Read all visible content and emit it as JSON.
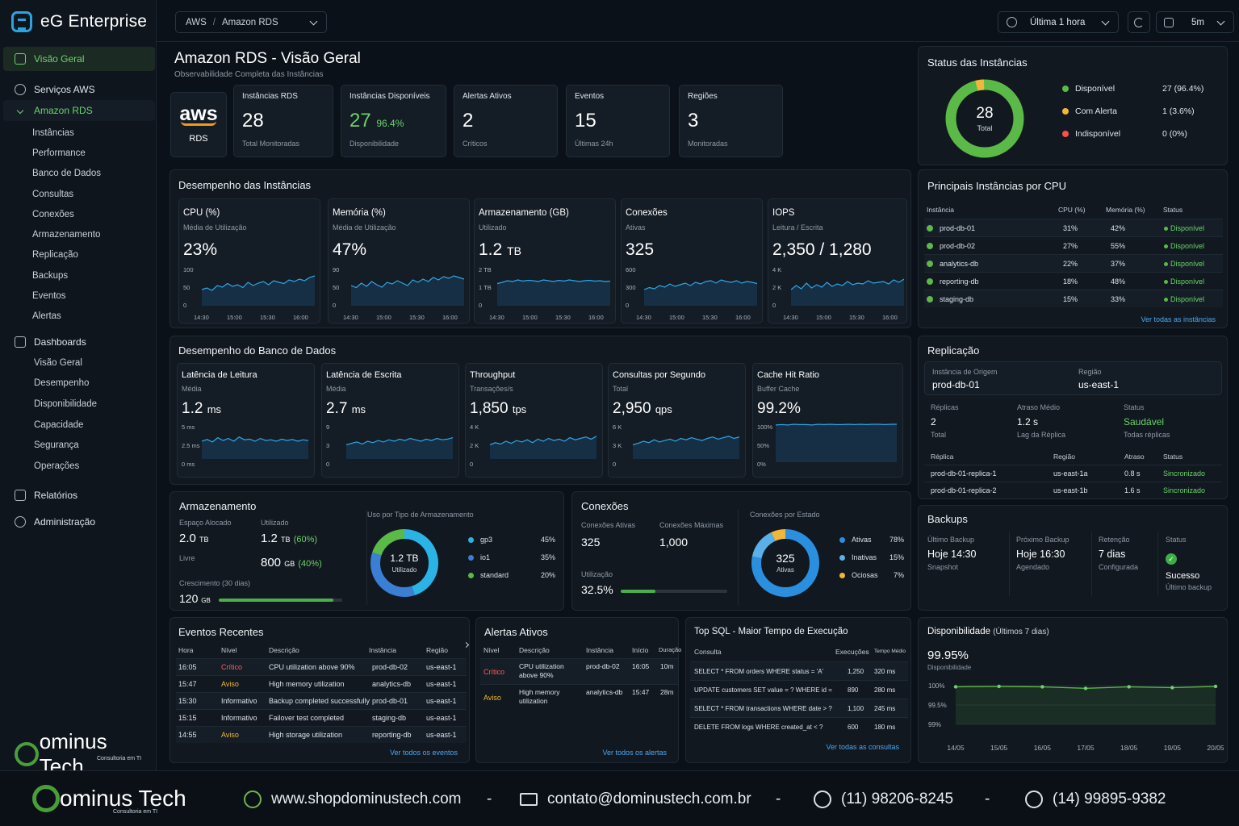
{
  "app": {
    "title": "eG Enterprise"
  },
  "sidebar": {
    "items": [
      {
        "label": "Visão Geral",
        "icon": "overview-icon",
        "active": true
      },
      {
        "label": "Serviços AWS",
        "icon": "gear-icon"
      },
      {
        "label": "Amazon RDS",
        "icon": "chevron-down-icon",
        "open": true
      }
    ],
    "rds_sub": [
      "Instâncias",
      "Performance",
      "Banco de Dados",
      "Consultas",
      "Conexões",
      "Armazenamento",
      "Replicação",
      "Backups",
      "Eventos",
      "Alertas"
    ],
    "dashboards": {
      "label": "Dashboards",
      "icon": "dashboards-icon",
      "sub": [
        "Visão Geral",
        "Desempenho",
        "Disponibilidade",
        "Capacidade",
        "Segurança",
        "Operações"
      ]
    },
    "reports": {
      "label": "Relatórios",
      "icon": "reports-icon"
    },
    "admin": {
      "label": "Administração",
      "icon": "admin-gear-icon"
    },
    "brand": {
      "name": "ominus Tech",
      "tag": "Consultoria em TI"
    }
  },
  "topbar": {
    "crumb_root": "AWS",
    "crumb_sep": "/",
    "crumb_page": "Amazon RDS",
    "time_range": "Última 1 hora",
    "refresh": "5m"
  },
  "header": {
    "title": "Amazon RDS - Visão Geral",
    "subtitle": "Observabilidade Completa das Instâncias"
  },
  "kpis": {
    "aws_logo": "aws",
    "aws_label": "RDS",
    "items": [
      {
        "label": "Instâncias RDS",
        "value": "28",
        "extra": "",
        "sub": "Total Monitoradas"
      },
      {
        "label": "Instâncias Disponíveis",
        "value": "27",
        "extra": "96.4%",
        "sub": "Disponibilidade"
      },
      {
        "label": "Alertas Ativos",
        "value": "2",
        "extra": "",
        "sub": "Críticos"
      },
      {
        "label": "Eventos",
        "value": "15",
        "extra": "",
        "sub": "Últimas 24h"
      },
      {
        "label": "Regiões",
        "value": "3",
        "extra": "",
        "sub": "Monitoradas"
      }
    ]
  },
  "status": {
    "title": "Status das Instâncias",
    "total": "28",
    "total_label": "Total",
    "legend": [
      {
        "label": "Disponível",
        "value": "27 (96.4%)",
        "color": "#5bb947",
        "count": 27
      },
      {
        "label": "Com Alerta",
        "value": "1 (3.6%)",
        "color": "#f0b83a",
        "count": 1
      },
      {
        "label": "Indisponível",
        "value": "0 (0%)",
        "color": "#ff4d4d",
        "count": 0
      }
    ]
  },
  "instance_perf": {
    "title": "Desempenho das Instâncias",
    "xticks": [
      "14:30",
      "15:00",
      "15:30",
      "16:00"
    ],
    "cards": [
      {
        "title": "CPU (%)",
        "sub": "Média de Utilização",
        "value": "23%",
        "unit": "",
        "yticks": [
          "100",
          "50",
          "0"
        ],
        "series": [
          40,
          44,
          38,
          50,
          46,
          55,
          48,
          52,
          45,
          58,
          50,
          56,
          60,
          52,
          62,
          58,
          55,
          64,
          60,
          66,
          62,
          70,
          74
        ]
      },
      {
        "title": "Memória (%)",
        "sub": "Média de Utilização",
        "value": "47%",
        "unit": "",
        "yticks": [
          "90",
          "50",
          "0"
        ],
        "series": [
          50,
          45,
          56,
          48,
          60,
          52,
          46,
          58,
          54,
          62,
          56,
          50,
          64,
          58,
          66,
          60,
          70,
          64,
          72,
          68,
          74,
          70,
          66
        ]
      },
      {
        "title": "Armazenamento (GB)",
        "sub": "Utilizado",
        "value": "1.2",
        "unit": "TB",
        "yticks": [
          "2 TB",
          "1 TB",
          "0"
        ],
        "series": [
          55,
          58,
          62,
          60,
          64,
          61,
          63,
          62,
          60,
          64,
          62,
          60,
          63,
          61,
          64,
          62,
          60,
          62,
          63,
          61,
          62,
          60,
          61
        ]
      },
      {
        "title": "Conexões",
        "sub": "Ativas",
        "value": "325",
        "unit": "",
        "yticks": [
          "600",
          "300",
          "0"
        ],
        "series": [
          40,
          45,
          42,
          50,
          46,
          54,
          48,
          52,
          56,
          50,
          58,
          54,
          60,
          62,
          56,
          64,
          60,
          58,
          62,
          56,
          60,
          58,
          55
        ]
      },
      {
        "title": "IOPS",
        "sub": "Leitura / Escrita",
        "value": "2,350 / 1,280",
        "unit": "",
        "yticks": [
          "4 K",
          "2 K",
          "0"
        ],
        "series": [
          40,
          50,
          42,
          56,
          44,
          52,
          46,
          58,
          48,
          54,
          50,
          60,
          52,
          56,
          54,
          62,
          56,
          58,
          60,
          54,
          64,
          58,
          66
        ]
      }
    ]
  },
  "db_perf": {
    "title": "Desempenho do Banco de Dados",
    "cards": [
      {
        "title": "Latência de Leitura",
        "sub": "Média",
        "value": "1.2",
        "unit": "ms",
        "yticks": [
          "5 ms",
          "2.5 ms",
          "0 ms"
        ],
        "series": [
          50,
          55,
          48,
          60,
          52,
          58,
          50,
          62,
          54,
          56,
          50,
          58,
          52,
          54,
          50,
          56,
          52,
          55,
          50,
          54,
          52
        ]
      },
      {
        "title": "Latência de Escrita",
        "sub": "Média",
        "value": "2.7",
        "unit": "ms",
        "yticks": [
          "9",
          "3",
          "0"
        ],
        "series": [
          40,
          44,
          48,
          42,
          50,
          46,
          52,
          48,
          54,
          50,
          56,
          52,
          58,
          54,
          50,
          56,
          52,
          58,
          54,
          56,
          60
        ]
      },
      {
        "title": "Throughput",
        "sub": "Transações/s",
        "value": "1,850",
        "unit": "tps",
        "yticks": [
          "4 K",
          "2 K",
          "0"
        ],
        "series": [
          40,
          46,
          42,
          50,
          44,
          52,
          48,
          54,
          46,
          56,
          50,
          58,
          52,
          56,
          50,
          60,
          54,
          58,
          62,
          56,
          64
        ]
      },
      {
        "title": "Consultas por Segundo",
        "sub": "Total",
        "value": "2,950",
        "unit": "qps",
        "yticks": [
          "6 K",
          "3 K",
          "0"
        ],
        "series": [
          40,
          44,
          50,
          46,
          54,
          48,
          52,
          56,
          50,
          58,
          54,
          60,
          56,
          52,
          58,
          62,
          56,
          60,
          64,
          58,
          62
        ]
      },
      {
        "title": "Cache Hit Ratio",
        "sub": "Buffer Cache",
        "value": "99.2%",
        "unit": "",
        "yticks": [
          "100%",
          "50%",
          "0%"
        ],
        "series": [
          96,
          97,
          96,
          98,
          97,
          97,
          96,
          98,
          97,
          98,
          97,
          97,
          98,
          97,
          98,
          97,
          98,
          98,
          97,
          98,
          98
        ]
      }
    ]
  },
  "storage": {
    "title": "Armazenamento",
    "alloc_label": "Espaço Alocado",
    "alloc_value": "2.0",
    "alloc_unit": "TB",
    "used_label": "Utilizado",
    "used_value": "1.2",
    "used_unit": "TB",
    "used_pct": "(60%)",
    "free_label": "Livre",
    "free_value": "800",
    "free_unit": "GB",
    "free_pct": "(40%)",
    "growth_label": "Crescimento (30 dias)",
    "growth_value": "120",
    "growth_unit": "GB",
    "growth_fraction": 0.93,
    "type_title": "Uso por Tipo de Armazenamento",
    "donut_value": "1.2 TB",
    "donut_label": "Utilizado",
    "types": [
      {
        "label": "gp3",
        "value": "45%",
        "pct": 45,
        "color": "#2bb3e6"
      },
      {
        "label": "io1",
        "value": "35%",
        "pct": 35,
        "color": "#3a7fd4"
      },
      {
        "label": "standard",
        "value": "20%",
        "pct": 20,
        "color": "#5bb947"
      }
    ]
  },
  "connections": {
    "title": "Conexões",
    "active_label": "Conexões Ativas",
    "active_value": "325",
    "max_label": "Conexões Máximas",
    "max_value": "1,000",
    "util_label": "Utilização",
    "util_value": "32.5%",
    "util_fraction": 0.325,
    "state_title": "Conexões por Estado",
    "donut_value": "325",
    "donut_label": "Ativas",
    "states": [
      {
        "label": "Ativas",
        "value": "78%",
        "pct": 78,
        "color": "#2b8fe0"
      },
      {
        "label": "Inativas",
        "value": "15%",
        "pct": 15,
        "color": "#5ab0e8"
      },
      {
        "label": "Ociosas",
        "value": "7%",
        "pct": 7,
        "color": "#f0b83a"
      }
    ]
  },
  "top_cpu": {
    "title": "Principais Instâncias por CPU",
    "headers": [
      "Instância",
      "CPU (%)",
      "Memória (%)",
      "Status"
    ],
    "rows": [
      {
        "name": "prod-db-01",
        "cpu": "31%",
        "mem": "42%",
        "status": "Disponível"
      },
      {
        "name": "prod-db-02",
        "cpu": "27%",
        "mem": "55%",
        "status": "Disponível"
      },
      {
        "name": "analytics-db",
        "cpu": "22%",
        "mem": "37%",
        "status": "Disponível"
      },
      {
        "name": "reporting-db",
        "cpu": "18%",
        "mem": "48%",
        "status": "Disponível"
      },
      {
        "name": "staging-db",
        "cpu": "15%",
        "mem": "33%",
        "status": "Disponível"
      }
    ],
    "link": "Ver todas as instâncias"
  },
  "replication": {
    "title": "Replicação",
    "source_label": "Instância de Origem",
    "source_value": "prod-db-01",
    "region_label": "Região",
    "region_value": "us-east-1",
    "replicas_label": "Réplicas",
    "replicas_value": "2",
    "replicas_sub": "Total",
    "lag_label": "Atraso Médio",
    "lag_value": "1.2 s",
    "lag_sub": "Lag da Réplica",
    "status_label": "Status",
    "status_value": "Saudável",
    "status_sub": "Todas réplicas",
    "headers": [
      "Réplica",
      "Região",
      "Atraso",
      "Status"
    ],
    "rows": [
      {
        "name": "prod-db-01-replica-1",
        "region": "us-east-1a",
        "lag": "0.8 s",
        "status": "Sincronizado"
      },
      {
        "name": "prod-db-01-replica-2",
        "region": "us-east-1b",
        "lag": "1.6 s",
        "status": "Sincronizado"
      }
    ]
  },
  "backups": {
    "title": "Backups",
    "items": [
      {
        "label": "Último Backup",
        "value": "Hoje 14:30",
        "sub": "Snapshot"
      },
      {
        "label": "Próximo Backup",
        "value": "Hoje 16:30",
        "sub": "Agendado"
      },
      {
        "label": "Retenção",
        "value": "7 dias",
        "sub": "Configurada"
      }
    ],
    "status_label": "Status",
    "status_value": "Sucesso",
    "status_sub": "Último backup"
  },
  "events": {
    "title": "Eventos Recentes",
    "headers": [
      "Hora",
      "Nível",
      "Descrição",
      "Instância",
      "Região"
    ],
    "rows": [
      {
        "time": "16:05",
        "level": "Crítico",
        "desc": "CPU utilization above 90%",
        "inst": "prod-db-02",
        "region": "us-east-1"
      },
      {
        "time": "15:47",
        "level": "Aviso",
        "desc": "High memory utilization",
        "inst": "analytics-db",
        "region": "us-east-1"
      },
      {
        "time": "15:30",
        "level": "Informativo",
        "desc": "Backup completed successfully",
        "inst": "prod-db-01",
        "region": "us-east-1"
      },
      {
        "time": "15:15",
        "level": "Informativo",
        "desc": "Failover test completed",
        "inst": "staging-db",
        "region": "us-east-1"
      },
      {
        "time": "14:55",
        "level": "Aviso",
        "desc": "High storage utilization",
        "inst": "reporting-db",
        "region": "us-east-1"
      }
    ],
    "link": "Ver todos os eventos"
  },
  "alerts": {
    "title": "Alertas Ativos",
    "headers": [
      "Nível",
      "Descrição",
      "Instância",
      "Início",
      "Duração"
    ],
    "rows": [
      {
        "level": "Crítico",
        "desc1": "CPU utilization",
        "desc2": "above 90%",
        "inst": "prod-db-02",
        "start": "16:05",
        "dur": "10m"
      },
      {
        "level": "Aviso",
        "desc1": "High memory",
        "desc2": "utilization",
        "inst": "analytics-db",
        "start": "15:47",
        "dur": "28m"
      }
    ],
    "link": "Ver todos os alertas"
  },
  "top_sql": {
    "title": "Top SQL - Maior Tempo de Execução",
    "headers": [
      "Consulta",
      "Execuções",
      "Tempo Médio"
    ],
    "rows": [
      {
        "q": "SELECT * FROM orders WHERE status = 'A'",
        "exec": "1,250",
        "time": "320 ms"
      },
      {
        "q": "UPDATE customers SET value = ? WHERE id =",
        "exec": "890",
        "time": "280 ms"
      },
      {
        "q": "SELECT * FROM transactions WHERE date > ?",
        "exec": "1,100",
        "time": "245 ms"
      },
      {
        "q": "DELETE FROM logs WHERE created_at < ?",
        "exec": "600",
        "time": "180 ms"
      }
    ],
    "link": "Ver todas as consultas"
  },
  "availability": {
    "title": "Disponibilidade",
    "title_sub": "(Últimos 7 dias)",
    "value": "99.95%",
    "value_label": "Disponibilidade",
    "chart_data": {
      "type": "area",
      "x": [
        "14/05",
        "15/05",
        "16/05",
        "17/05",
        "18/05",
        "19/05",
        "20/05"
      ],
      "values": [
        99.97,
        99.98,
        99.97,
        99.93,
        99.97,
        99.95,
        99.98
      ],
      "yticks": [
        "100%",
        "99.5%",
        "99%"
      ],
      "ylim": [
        99,
        100
      ]
    }
  },
  "footer": {
    "brand": "ominus Tech",
    "tag": "Consultoria em TI",
    "site": "www.shopdominustech.com",
    "email": "contato@dominustech.com.br",
    "phone1": "(11) 98206-8245",
    "phone2": "(14) 99895-9382",
    "sep": "-"
  }
}
